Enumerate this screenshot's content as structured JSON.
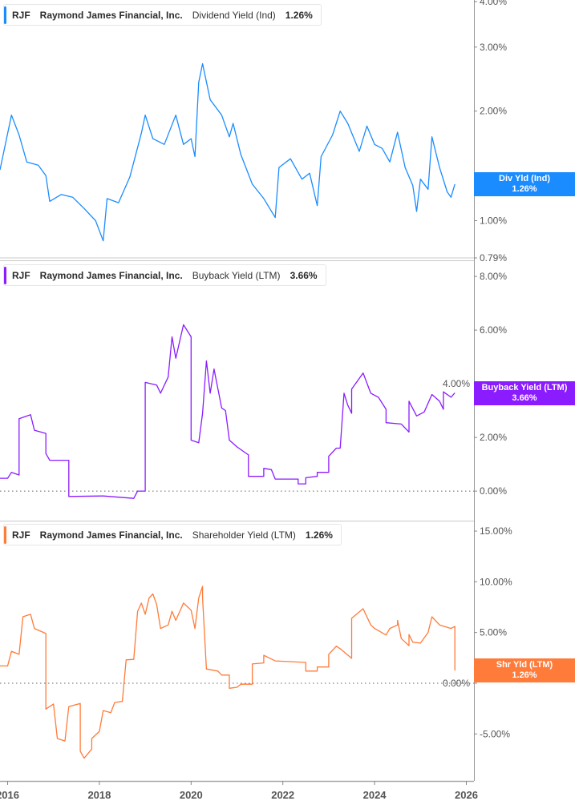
{
  "colors": {
    "dividend": "#1a8cff",
    "buyback": "#8a1cff",
    "shareholder": "#ff7b3a",
    "axis": "#999999"
  },
  "chart_data": [
    {
      "type": "line",
      "legend": {
        "ticker": "RJF",
        "company": "Raymond James Financial, Inc.",
        "metric": "Dividend Yield (Ind)",
        "value": "1.26%"
      },
      "badge": {
        "label": "Div Yld (Ind)",
        "value": "1.26%"
      },
      "yscale": "log",
      "ylim": [
        0.79,
        4.0
      ],
      "yticks": [
        {
          "v": 0.79,
          "label": "0.79%"
        },
        {
          "v": 1.0,
          "label": "1.00%"
        },
        {
          "v": 2.0,
          "label": "2.00%"
        },
        {
          "v": 3.0,
          "label": "3.00%"
        },
        {
          "v": 4.0,
          "label": "4.00%"
        }
      ],
      "zero_line": false,
      "last_value": 1.26,
      "points": [
        [
          "2015-11",
          1.38
        ],
        [
          "2016-02",
          1.95
        ],
        [
          "2016-04",
          1.72
        ],
        [
          "2016-06",
          1.45
        ],
        [
          "2016-09",
          1.42
        ],
        [
          "2016-11",
          1.33
        ],
        [
          "2016-12",
          1.13
        ],
        [
          "2017-03",
          1.18
        ],
        [
          "2017-06",
          1.16
        ],
        [
          "2017-09",
          1.08
        ],
        [
          "2017-12",
          1.0
        ],
        [
          "2018-02",
          0.88
        ],
        [
          "2018-03",
          1.15
        ],
        [
          "2018-06",
          1.12
        ],
        [
          "2018-09",
          1.32
        ],
        [
          "2018-12",
          1.74
        ],
        [
          "2019-01",
          1.95
        ],
        [
          "2019-03",
          1.68
        ],
        [
          "2019-06",
          1.62
        ],
        [
          "2019-09",
          1.95
        ],
        [
          "2019-11",
          1.62
        ],
        [
          "2020-01",
          1.68
        ],
        [
          "2020-02",
          1.5
        ],
        [
          "2020-03",
          2.4
        ],
        [
          "2020-04",
          2.7
        ],
        [
          "2020-06",
          2.15
        ],
        [
          "2020-09",
          1.95
        ],
        [
          "2020-11",
          1.7
        ],
        [
          "2020-12",
          1.85
        ],
        [
          "2021-02",
          1.52
        ],
        [
          "2021-05",
          1.26
        ],
        [
          "2021-08",
          1.15
        ],
        [
          "2021-11",
          1.02
        ],
        [
          "2021-12",
          1.4
        ],
        [
          "2022-03",
          1.48
        ],
        [
          "2022-06",
          1.3
        ],
        [
          "2022-08",
          1.35
        ],
        [
          "2022-10",
          1.1
        ],
        [
          "2022-11",
          1.5
        ],
        [
          "2023-02",
          1.72
        ],
        [
          "2023-04",
          2.0
        ],
        [
          "2023-06",
          1.85
        ],
        [
          "2023-09",
          1.55
        ],
        [
          "2023-11",
          1.82
        ],
        [
          "2024-01",
          1.62
        ],
        [
          "2024-03",
          1.58
        ],
        [
          "2024-05",
          1.45
        ],
        [
          "2024-07",
          1.75
        ],
        [
          "2024-09",
          1.4
        ],
        [
          "2024-11",
          1.25
        ],
        [
          "2024-12",
          1.06
        ],
        [
          "2025-01",
          1.3
        ],
        [
          "2025-03",
          1.22
        ],
        [
          "2025-04",
          1.7
        ],
        [
          "2025-06",
          1.4
        ],
        [
          "2025-08",
          1.2
        ],
        [
          "2025-09",
          1.16
        ],
        [
          "2025-10",
          1.26
        ]
      ]
    },
    {
      "type": "line",
      "legend": {
        "ticker": "RJF",
        "company": "Raymond James Financial, Inc.",
        "metric": "Buyback Yield (LTM)",
        "value": "3.66%"
      },
      "badge": {
        "label": "Buyback Yield (LTM)",
        "value": "3.66%"
      },
      "yscale": "linear",
      "ylim": [
        -1.1,
        8.6
      ],
      "yticks": [
        {
          "v": 0,
          "label": "0.00%"
        },
        {
          "v": 2,
          "label": "2.00%"
        },
        {
          "v": 4,
          "label": "4.00%"
        },
        {
          "v": 6,
          "label": "6.00%"
        },
        {
          "v": 8,
          "label": "8.00%"
        }
      ],
      "zero_line": true,
      "last_value": 3.66,
      "points": [
        [
          "2015-11",
          0.48
        ],
        [
          "2016-01",
          0.48
        ],
        [
          "2016-02",
          0.7
        ],
        [
          "2016-04",
          0.6
        ],
        [
          "2016-04",
          2.7
        ],
        [
          "2016-07",
          2.85
        ],
        [
          "2016-08",
          2.27
        ],
        [
          "2016-11",
          2.15
        ],
        [
          "2016-11",
          1.4
        ],
        [
          "2016-12",
          1.15
        ],
        [
          "2017-05",
          1.15
        ],
        [
          "2017-05",
          -0.2
        ],
        [
          "2018-02",
          -0.18
        ],
        [
          "2018-10",
          -0.27
        ],
        [
          "2018-11",
          0.0
        ],
        [
          "2019-01",
          0.0
        ],
        [
          "2019-01",
          4.05
        ],
        [
          "2019-04",
          3.95
        ],
        [
          "2019-05",
          3.65
        ],
        [
          "2019-07",
          4.25
        ],
        [
          "2019-08",
          5.75
        ],
        [
          "2019-09",
          4.95
        ],
        [
          "2019-11",
          6.2
        ],
        [
          "2020-01",
          5.75
        ],
        [
          "2020-01",
          1.9
        ],
        [
          "2020-03",
          1.8
        ],
        [
          "2020-04",
          2.9
        ],
        [
          "2020-05",
          4.85
        ],
        [
          "2020-06",
          3.65
        ],
        [
          "2020-07",
          4.55
        ],
        [
          "2020-09",
          3.1
        ],
        [
          "2020-10",
          3.0
        ],
        [
          "2020-11",
          1.9
        ],
        [
          "2021-01",
          1.65
        ],
        [
          "2021-03",
          1.45
        ],
        [
          "2021-04",
          1.35
        ],
        [
          "2021-04",
          0.55
        ],
        [
          "2021-08",
          0.55
        ],
        [
          "2021-08",
          0.85
        ],
        [
          "2021-10",
          0.8
        ],
        [
          "2021-11",
          0.45
        ],
        [
          "2022-05",
          0.45
        ],
        [
          "2022-05",
          0.27
        ],
        [
          "2022-07",
          0.27
        ],
        [
          "2022-07",
          0.5
        ],
        [
          "2022-10",
          0.55
        ],
        [
          "2022-10",
          0.7
        ],
        [
          "2023-01",
          0.7
        ],
        [
          "2023-01",
          1.3
        ],
        [
          "2023-03",
          1.6
        ],
        [
          "2023-04",
          1.6
        ],
        [
          "2023-05",
          3.65
        ],
        [
          "2023-06",
          3.2
        ],
        [
          "2023-07",
          2.9
        ],
        [
          "2023-07",
          3.8
        ],
        [
          "2023-10",
          4.4
        ],
        [
          "2023-12",
          3.65
        ],
        [
          "2024-02",
          3.5
        ],
        [
          "2024-04",
          3.05
        ],
        [
          "2024-04",
          2.55
        ],
        [
          "2024-08",
          2.5
        ],
        [
          "2024-10",
          2.2
        ],
        [
          "2024-10",
          3.35
        ],
        [
          "2024-12",
          2.8
        ],
        [
          "2025-02",
          2.95
        ],
        [
          "2025-04",
          3.6
        ],
        [
          "2025-06",
          3.35
        ],
        [
          "2025-07",
          3.05
        ],
        [
          "2025-07",
          3.7
        ],
        [
          "2025-09",
          3.5
        ],
        [
          "2025-10",
          3.66
        ]
      ]
    },
    {
      "type": "line",
      "legend": {
        "ticker": "RJF",
        "company": "Raymond James Financial, Inc.",
        "metric": "Shareholder Yield (LTM)",
        "value": "1.26%"
      },
      "badge": {
        "label": "Shr Yld (LTM)",
        "value": "1.26%"
      },
      "yscale": "linear",
      "ylim": [
        -9.64,
        16.03
      ],
      "yticks": [
        {
          "v": -5,
          "label": "-5.00%"
        },
        {
          "v": 0,
          "label": "0.00%"
        },
        {
          "v": 5,
          "label": "5.00%"
        },
        {
          "v": 10,
          "label": "10.00%"
        },
        {
          "v": 15,
          "label": "15.00%"
        }
      ],
      "zero_line": true,
      "last_value": 1.26,
      "points": [
        [
          "2015-11",
          1.7
        ],
        [
          "2016-01",
          1.7
        ],
        [
          "2016-02",
          3.15
        ],
        [
          "2016-04",
          2.85
        ],
        [
          "2016-05",
          6.55
        ],
        [
          "2016-07",
          6.8
        ],
        [
          "2016-08",
          5.4
        ],
        [
          "2016-11",
          4.9
        ],
        [
          "2016-11",
          -2.55
        ],
        [
          "2017-01",
          -2.05
        ],
        [
          "2017-02",
          -5.45
        ],
        [
          "2017-04",
          -5.7
        ],
        [
          "2017-05",
          -2.3
        ],
        [
          "2017-08",
          -2.0
        ],
        [
          "2017-08",
          -6.7
        ],
        [
          "2017-09",
          -7.4
        ],
        [
          "2017-11",
          -6.5
        ],
        [
          "2017-11",
          -5.45
        ],
        [
          "2018-01",
          -4.75
        ],
        [
          "2018-02",
          -2.7
        ],
        [
          "2018-04",
          -2.9
        ],
        [
          "2018-05",
          -1.9
        ],
        [
          "2018-07",
          -1.8
        ],
        [
          "2018-08",
          2.3
        ],
        [
          "2018-10",
          2.35
        ],
        [
          "2018-11",
          7.1
        ],
        [
          "2018-12",
          7.9
        ],
        [
          "2019-01",
          6.8
        ],
        [
          "2019-02",
          8.4
        ],
        [
          "2019-03",
          8.8
        ],
        [
          "2019-04",
          7.75
        ],
        [
          "2019-05",
          5.4
        ],
        [
          "2019-07",
          5.75
        ],
        [
          "2019-08",
          7.1
        ],
        [
          "2019-09",
          6.2
        ],
        [
          "2019-11",
          7.9
        ],
        [
          "2020-01",
          7.2
        ],
        [
          "2020-02",
          5.4
        ],
        [
          "2020-03",
          8.4
        ],
        [
          "2020-04",
          9.55
        ],
        [
          "2020-04",
          8.4
        ],
        [
          "2020-05",
          1.4
        ],
        [
          "2020-08",
          1.2
        ],
        [
          "2020-09",
          0.8
        ],
        [
          "2020-11",
          0.8
        ],
        [
          "2020-11",
          -0.5
        ],
        [
          "2021-01",
          -0.4
        ],
        [
          "2021-02",
          -0.1
        ],
        [
          "2021-05",
          -0.1
        ],
        [
          "2021-05",
          1.9
        ],
        [
          "2021-08",
          2.0
        ],
        [
          "2021-08",
          2.75
        ],
        [
          "2021-11",
          2.2
        ],
        [
          "2022-07",
          2.05
        ],
        [
          "2022-07",
          1.2
        ],
        [
          "2022-10",
          1.2
        ],
        [
          "2022-10",
          1.6
        ],
        [
          "2023-01",
          1.6
        ],
        [
          "2023-01",
          2.85
        ],
        [
          "2023-03",
          3.65
        ],
        [
          "2023-04",
          3.4
        ],
        [
          "2023-07",
          2.45
        ],
        [
          "2023-07",
          6.4
        ],
        [
          "2023-10",
          7.35
        ],
        [
          "2023-12",
          5.75
        ],
        [
          "2024-01",
          5.4
        ],
        [
          "2024-04",
          4.75
        ],
        [
          "2024-05",
          5.4
        ],
        [
          "2024-07",
          5.75
        ],
        [
          "2024-07",
          6.2
        ],
        [
          "2024-08",
          4.4
        ],
        [
          "2024-10",
          3.7
        ],
        [
          "2024-10",
          4.8
        ],
        [
          "2024-11",
          4.05
        ],
        [
          "2025-01",
          3.95
        ],
        [
          "2025-03",
          5.0
        ],
        [
          "2025-04",
          6.55
        ],
        [
          "2025-06",
          5.75
        ],
        [
          "2025-09",
          5.4
        ],
        [
          "2025-10",
          5.6
        ],
        [
          "2025-10",
          1.26
        ]
      ]
    }
  ],
  "xaxis": {
    "xlim": [
      "2015-11",
      "2026-03"
    ],
    "ticks": [
      "2016",
      "2018",
      "2020",
      "2022",
      "2024",
      "2026"
    ]
  }
}
